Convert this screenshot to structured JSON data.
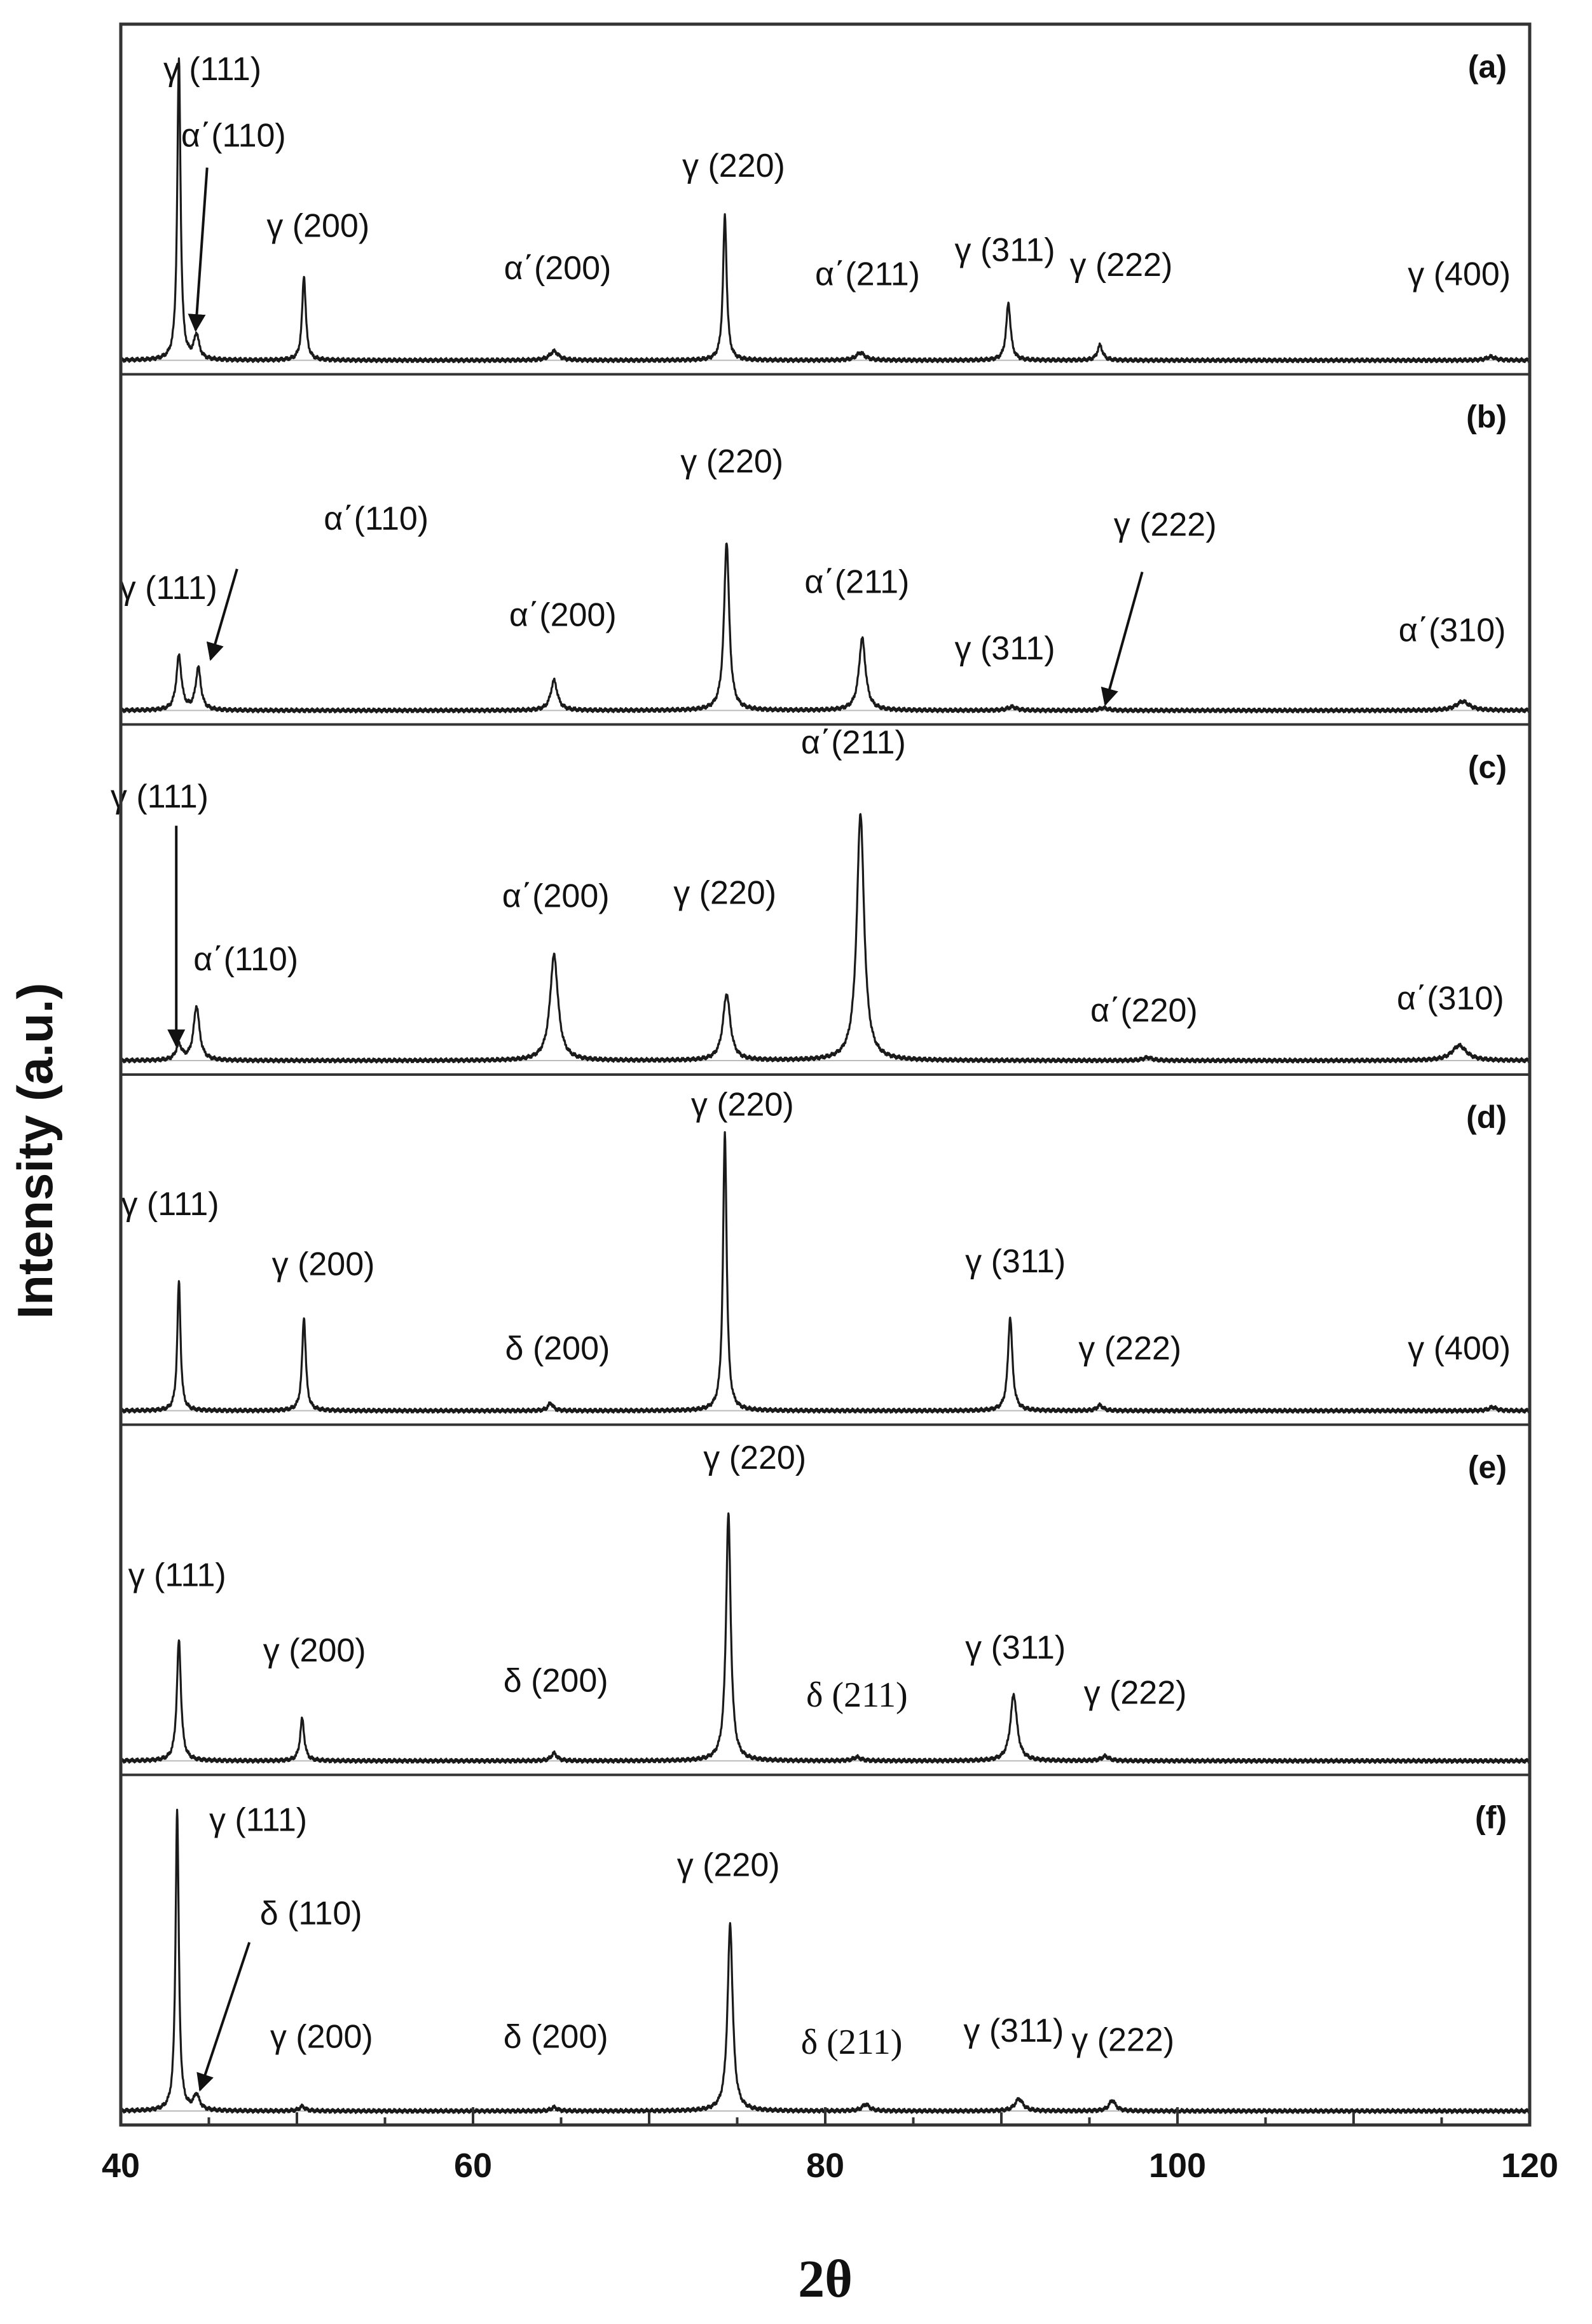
{
  "chart_data": {
    "type": "line",
    "xlabel": "2θ",
    "ylabel": "Intensity (a.u.)",
    "xlim": [
      40,
      120
    ],
    "xticks": [
      40,
      60,
      80,
      100,
      120
    ],
    "xtick_labels": [
      "40",
      "60",
      "80",
      "100",
      "120"
    ],
    "grid": false,
    "panels": [
      {
        "tag": "(a)",
        "peaks": [
          {
            "x": 43.3,
            "h": 1.0,
            "w": 0.22
          },
          {
            "x": 44.3,
            "h": 0.08,
            "w": 0.35
          },
          {
            "x": 50.4,
            "h": 0.28,
            "w": 0.25
          },
          {
            "x": 64.6,
            "h": 0.03,
            "w": 0.6
          },
          {
            "x": 74.3,
            "h": 0.48,
            "w": 0.25
          },
          {
            "x": 82.0,
            "h": 0.025,
            "w": 0.6
          },
          {
            "x": 90.4,
            "h": 0.19,
            "w": 0.3
          },
          {
            "x": 95.6,
            "h": 0.05,
            "w": 0.35
          },
          {
            "x": 117.8,
            "h": 0.012,
            "w": 0.6
          }
        ],
        "labels": [
          {
            "text": "γ (111)",
            "x": 45.2,
            "y": 0.93
          },
          {
            "text": "α΄(110)",
            "x": 46.4,
            "y": 0.71
          },
          {
            "text": "γ (200)",
            "x": 51.2,
            "y": 0.41
          },
          {
            "text": "α΄(200)",
            "x": 64.8,
            "y": 0.27
          },
          {
            "text": "γ (220)",
            "x": 74.8,
            "y": 0.61
          },
          {
            "text": "α΄(211)",
            "x": 82.4,
            "y": 0.25
          },
          {
            "text": "γ (311)",
            "x": 90.2,
            "y": 0.33
          },
          {
            "text": "γ (222)",
            "x": 96.8,
            "y": 0.28
          },
          {
            "text": "γ (400)",
            "x": 116.0,
            "y": 0.25
          }
        ]
      },
      {
        "tag": "(b)",
        "peaks": [
          {
            "x": 43.3,
            "h": 0.18,
            "w": 0.35
          },
          {
            "x": 44.4,
            "h": 0.14,
            "w": 0.35
          },
          {
            "x": 64.6,
            "h": 0.1,
            "w": 0.45
          },
          {
            "x": 74.4,
            "h": 0.56,
            "w": 0.35
          },
          {
            "x": 82.1,
            "h": 0.24,
            "w": 0.45
          },
          {
            "x": 90.6,
            "h": 0.012,
            "w": 0.6
          },
          {
            "x": 95.8,
            "h": 0.008,
            "w": 0.6
          },
          {
            "x": 116.2,
            "h": 0.03,
            "w": 0.9
          }
        ],
        "labels": [
          {
            "text": "γ (111)",
            "x": 42.7,
            "y": 0.37
          },
          {
            "text": "α΄(110)",
            "x": 54.5,
            "y": 0.6
          },
          {
            "text": "α΄(200)",
            "x": 65.1,
            "y": 0.28
          },
          {
            "text": "γ (220)",
            "x": 74.7,
            "y": 0.79
          },
          {
            "text": "α΄(211)",
            "x": 81.8,
            "y": 0.39
          },
          {
            "text": "γ (311)",
            "x": 90.2,
            "y": 0.17
          },
          {
            "text": "γ (222)",
            "x": 99.3,
            "y": 0.58
          },
          {
            "text": "α΄(310)",
            "x": 115.6,
            "y": 0.23
          }
        ]
      },
      {
        "tag": "(c)",
        "peaks": [
          {
            "x": 43.3,
            "h": 0.05,
            "w": 0.4
          },
          {
            "x": 44.3,
            "h": 0.18,
            "w": 0.4
          },
          {
            "x": 64.6,
            "h": 0.35,
            "w": 0.55
          },
          {
            "x": 74.4,
            "h": 0.22,
            "w": 0.5
          },
          {
            "x": 82.0,
            "h": 0.82,
            "w": 0.5
          },
          {
            "x": 98.3,
            "h": 0.01,
            "w": 0.6
          },
          {
            "x": 116.0,
            "h": 0.05,
            "w": 1.0
          }
        ],
        "labels": [
          {
            "text": "γ (111)",
            "x": 42.2,
            "y": 0.84
          },
          {
            "text": "α΄(110)",
            "x": 47.1,
            "y": 0.3
          },
          {
            "text": "α΄(200)",
            "x": 64.7,
            "y": 0.51
          },
          {
            "text": "γ (220)",
            "x": 74.3,
            "y": 0.52
          },
          {
            "text": "α΄(211)",
            "x": 81.6,
            "y": 1.02
          },
          {
            "text": "α΄(220)",
            "x": 98.1,
            "y": 0.13
          },
          {
            "text": "α΄(310)",
            "x": 115.5,
            "y": 0.17
          }
        ]
      },
      {
        "tag": "(d)",
        "peaks": [
          {
            "x": 43.3,
            "h": 0.43,
            "w": 0.22
          },
          {
            "x": 50.4,
            "h": 0.31,
            "w": 0.25
          },
          {
            "x": 64.4,
            "h": 0.025,
            "w": 0.35
          },
          {
            "x": 74.3,
            "h": 0.92,
            "w": 0.25
          },
          {
            "x": 90.5,
            "h": 0.31,
            "w": 0.3
          },
          {
            "x": 95.6,
            "h": 0.018,
            "w": 0.4
          },
          {
            "x": 117.9,
            "h": 0.012,
            "w": 0.5
          }
        ],
        "labels": [
          {
            "text": "γ (111)",
            "x": 42.8,
            "y": 0.65
          },
          {
            "text": "γ (200)",
            "x": 51.5,
            "y": 0.45
          },
          {
            "text": "δ (200)",
            "x": 64.8,
            "y": 0.17
          },
          {
            "text": "γ (220)",
            "x": 75.3,
            "y": 0.98
          },
          {
            "text": "γ (311)",
            "x": 90.8,
            "y": 0.46
          },
          {
            "text": "γ (222)",
            "x": 97.3,
            "y": 0.17
          },
          {
            "text": "γ (400)",
            "x": 116.0,
            "y": 0.17
          }
        ]
      },
      {
        "tag": "(e)",
        "peaks": [
          {
            "x": 43.3,
            "h": 0.4,
            "w": 0.28
          },
          {
            "x": 50.3,
            "h": 0.14,
            "w": 0.28
          },
          {
            "x": 64.6,
            "h": 0.025,
            "w": 0.4
          },
          {
            "x": 74.5,
            "h": 0.82,
            "w": 0.32
          },
          {
            "x": 81.8,
            "h": 0.012,
            "w": 0.5
          },
          {
            "x": 90.7,
            "h": 0.22,
            "w": 0.45
          },
          {
            "x": 95.9,
            "h": 0.015,
            "w": 0.5
          }
        ],
        "labels": [
          {
            "text": "γ (111)",
            "x": 43.2,
            "y": 0.58
          },
          {
            "text": "γ (200)",
            "x": 51.0,
            "y": 0.33
          },
          {
            "text": "δ (200)",
            "x": 64.7,
            "y": 0.23
          },
          {
            "text": "γ (220)",
            "x": 76.0,
            "y": 0.97
          },
          {
            "text": "δ (211)",
            "x": 81.8,
            "y": 0.18
          },
          {
            "text": "γ (311)",
            "x": 90.8,
            "y": 0.34
          },
          {
            "text": "γ (222)",
            "x": 97.6,
            "y": 0.19
          }
        ]
      },
      {
        "tag": "(f)",
        "peaks": [
          {
            "x": 43.2,
            "h": 1.0,
            "w": 0.22
          },
          {
            "x": 44.3,
            "h": 0.05,
            "w": 0.4
          },
          {
            "x": 50.3,
            "h": 0.015,
            "w": 0.4
          },
          {
            "x": 64.6,
            "h": 0.012,
            "w": 0.4
          },
          {
            "x": 74.6,
            "h": 0.62,
            "w": 0.35
          },
          {
            "x": 82.3,
            "h": 0.022,
            "w": 0.5
          },
          {
            "x": 91.0,
            "h": 0.04,
            "w": 0.55
          },
          {
            "x": 96.3,
            "h": 0.035,
            "w": 0.45
          }
        ],
        "labels": [
          {
            "text": "γ (111)",
            "x": 47.8,
            "y": 0.93
          },
          {
            "text": "δ (110)",
            "x": 50.8,
            "y": 0.62
          },
          {
            "text": "γ (200)",
            "x": 51.4,
            "y": 0.21
          },
          {
            "text": "δ (200)",
            "x": 64.7,
            "y": 0.21
          },
          {
            "text": "γ (220)",
            "x": 74.5,
            "y": 0.78
          },
          {
            "text": "δ (211)",
            "x": 81.5,
            "y": 0.19
          },
          {
            "text": "γ (311)",
            "x": 90.7,
            "y": 0.23
          },
          {
            "text": "γ (222)",
            "x": 96.9,
            "y": 0.2
          }
        ]
      }
    ]
  }
}
